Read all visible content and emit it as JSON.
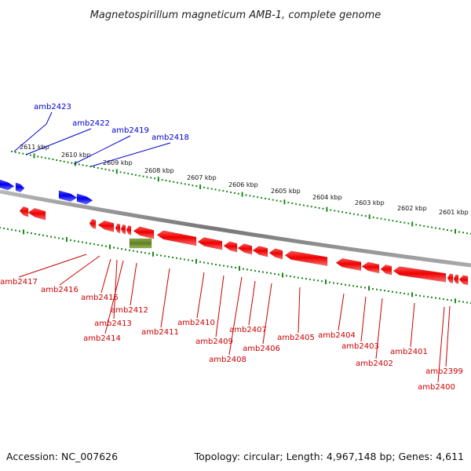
{
  "title": "Magnetospirillum magneticum AMB-1, complete genome",
  "footer": {
    "accession": "Accession: NC_007626",
    "summary": "Topology: circular; Length: 4,967,148 bp; Genes: 4,611"
  },
  "colors": {
    "forward_gene": "#1a1aff",
    "reverse_gene": "#ee0000",
    "other_feature": "#6b8c2a",
    "scale_ticks": "#1a8a1a",
    "backbone": "#888888",
    "forward_label": "#0000cc",
    "reverse_label": "#cc0000"
  },
  "scale_labels": [
    "2611 kbp",
    "2610 kbp",
    "2609 kbp",
    "2608 kbp",
    "2607 kbp",
    "2606 kbp",
    "2605 kbp",
    "2604 kbp",
    "2603 kbp",
    "2602 kbp",
    "2601 kbp"
  ],
  "forward_genes": [
    "amb2423",
    "amb2422",
    "amb2419",
    "amb2418"
  ],
  "reverse_genes": [
    "amb2417",
    "amb2416",
    "amb2415",
    "amb2413",
    "amb2414",
    "amb2412",
    "amb2411",
    "amb2410",
    "amb2409",
    "amb2408",
    "amb2407",
    "amb2406",
    "amb2405",
    "amb2404",
    "amb2403",
    "amb2402",
    "amb2401",
    "amb2399",
    "amb2400"
  ]
}
